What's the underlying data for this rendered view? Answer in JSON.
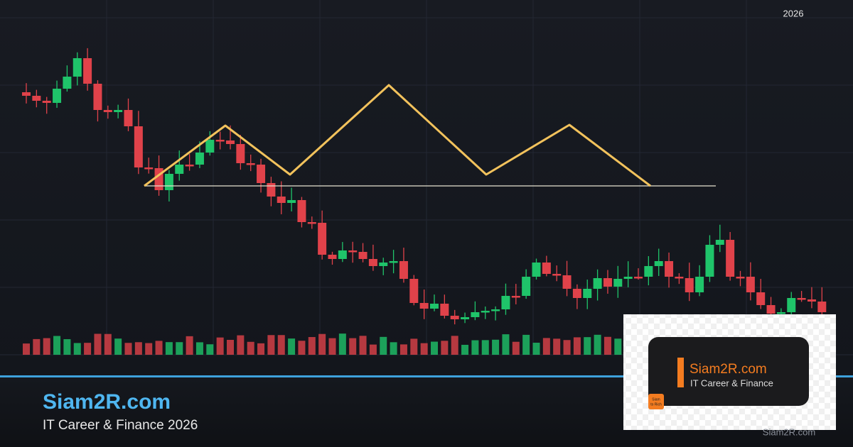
{
  "header": {
    "year": "2026"
  },
  "footer": {
    "title": "Siam2R.com",
    "subtitle": "IT Career & Finance 2026",
    "watermark": "Siam2R.com"
  },
  "badge": {
    "title": "Siam2R.com",
    "subtitle": "IT Career & Finance",
    "logo": [
      "Siam",
      "to Rich"
    ]
  }
}
